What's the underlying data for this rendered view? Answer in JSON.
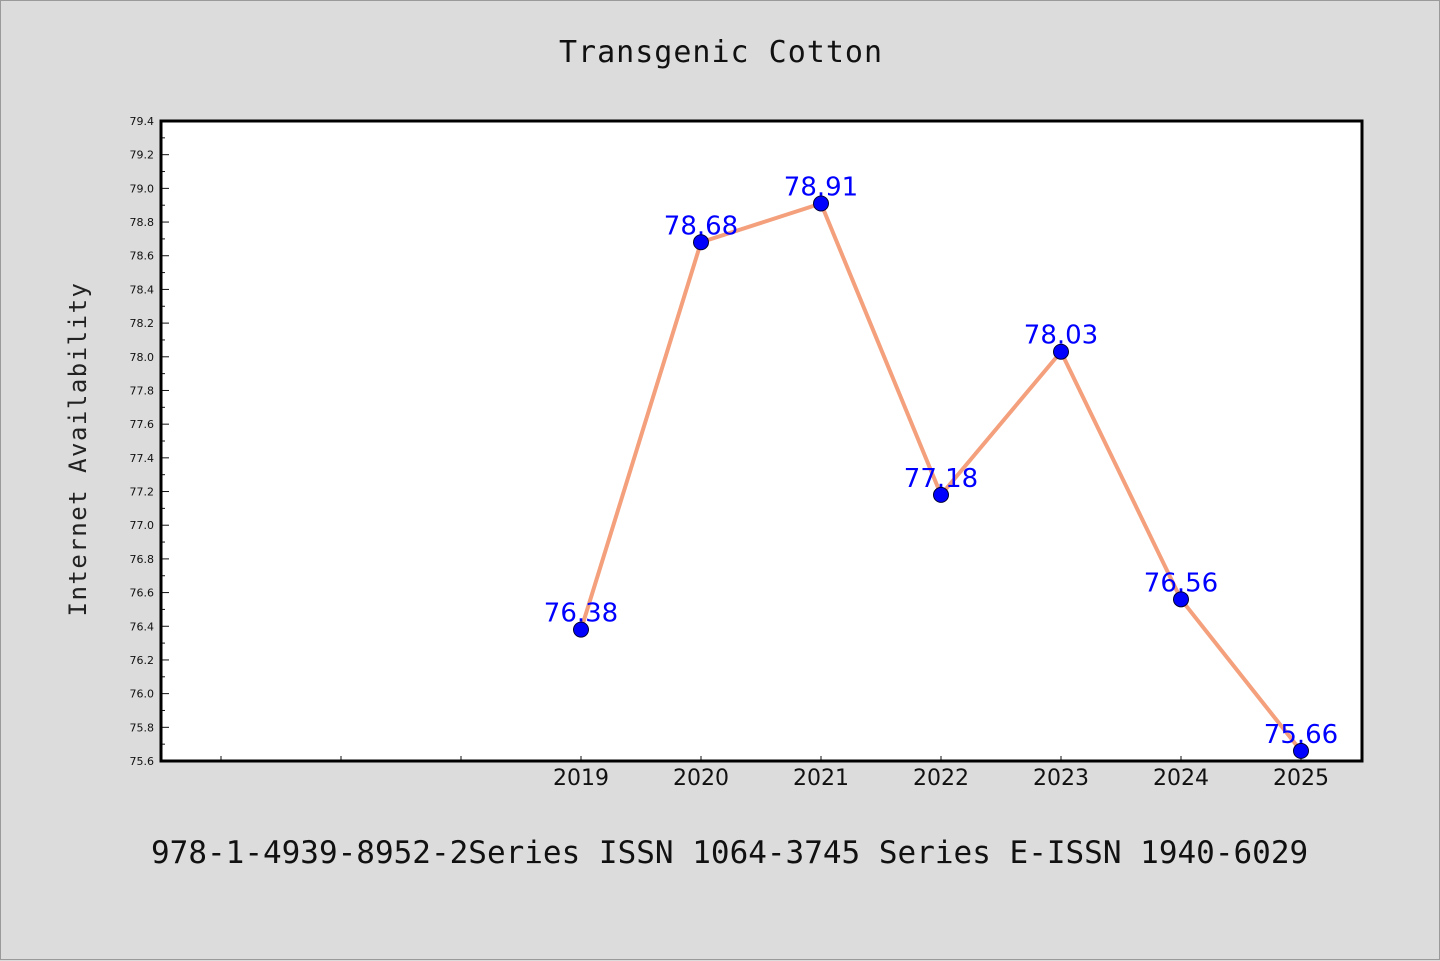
{
  "chart_data": {
    "type": "line",
    "title": "Transgenic Cotton",
    "xlabel": "",
    "ylabel": "Internet Availability",
    "categories": [
      "2019",
      "2020",
      "2021",
      "2022",
      "2023",
      "2024",
      "2025"
    ],
    "values": [
      76.38,
      78.68,
      78.91,
      77.18,
      78.03,
      76.56,
      75.66
    ],
    "data_labels": [
      "76.38",
      "78.68",
      "78.91",
      "77.18",
      "78.03",
      "76.56",
      "75.66"
    ],
    "ylim": [
      75.6,
      79.4
    ],
    "yticks": [
      "75.6",
      "75.8",
      "76.0",
      "76.2",
      "76.4",
      "76.6",
      "76.8",
      "77.0",
      "77.2",
      "77.4",
      "77.6",
      "77.8",
      "78.0",
      "78.2",
      "78.4",
      "78.6",
      "78.8",
      "79.0",
      "79.2",
      "79.4"
    ],
    "line_color": "#f4a07c",
    "marker_color": "#0000ff",
    "label_color": "#0000ff",
    "grid": false,
    "legend": "none"
  },
  "footer_text": "978-1-4939-8952-2Series ISSN 1064-3745 Series E-ISSN 1940-6029"
}
